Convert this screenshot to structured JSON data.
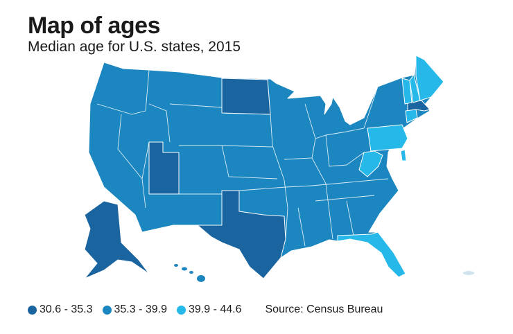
{
  "header": {
    "title": "Map of ages",
    "subtitle": "Median age for U.S. states, 2015"
  },
  "legend": {
    "items": [
      {
        "label": "30.6 - 35.3",
        "color": "#1a64a0"
      },
      {
        "label": "35.3 - 39.9",
        "color": "#1b86bf"
      },
      {
        "label": "39.9 - 44.6",
        "color": "#25b8e8"
      }
    ],
    "source": "Source: Census Bureau"
  },
  "map": {
    "dark_states": [
      "Utah",
      "North Dakota",
      "Texas",
      "Alaska",
      "Massachusetts"
    ],
    "light_states": [
      "Maine",
      "New Hampshire",
      "Vermont",
      "Connecticut",
      "Pennsylvania",
      "West Virginia",
      "Florida",
      "Delaware"
    ]
  }
}
